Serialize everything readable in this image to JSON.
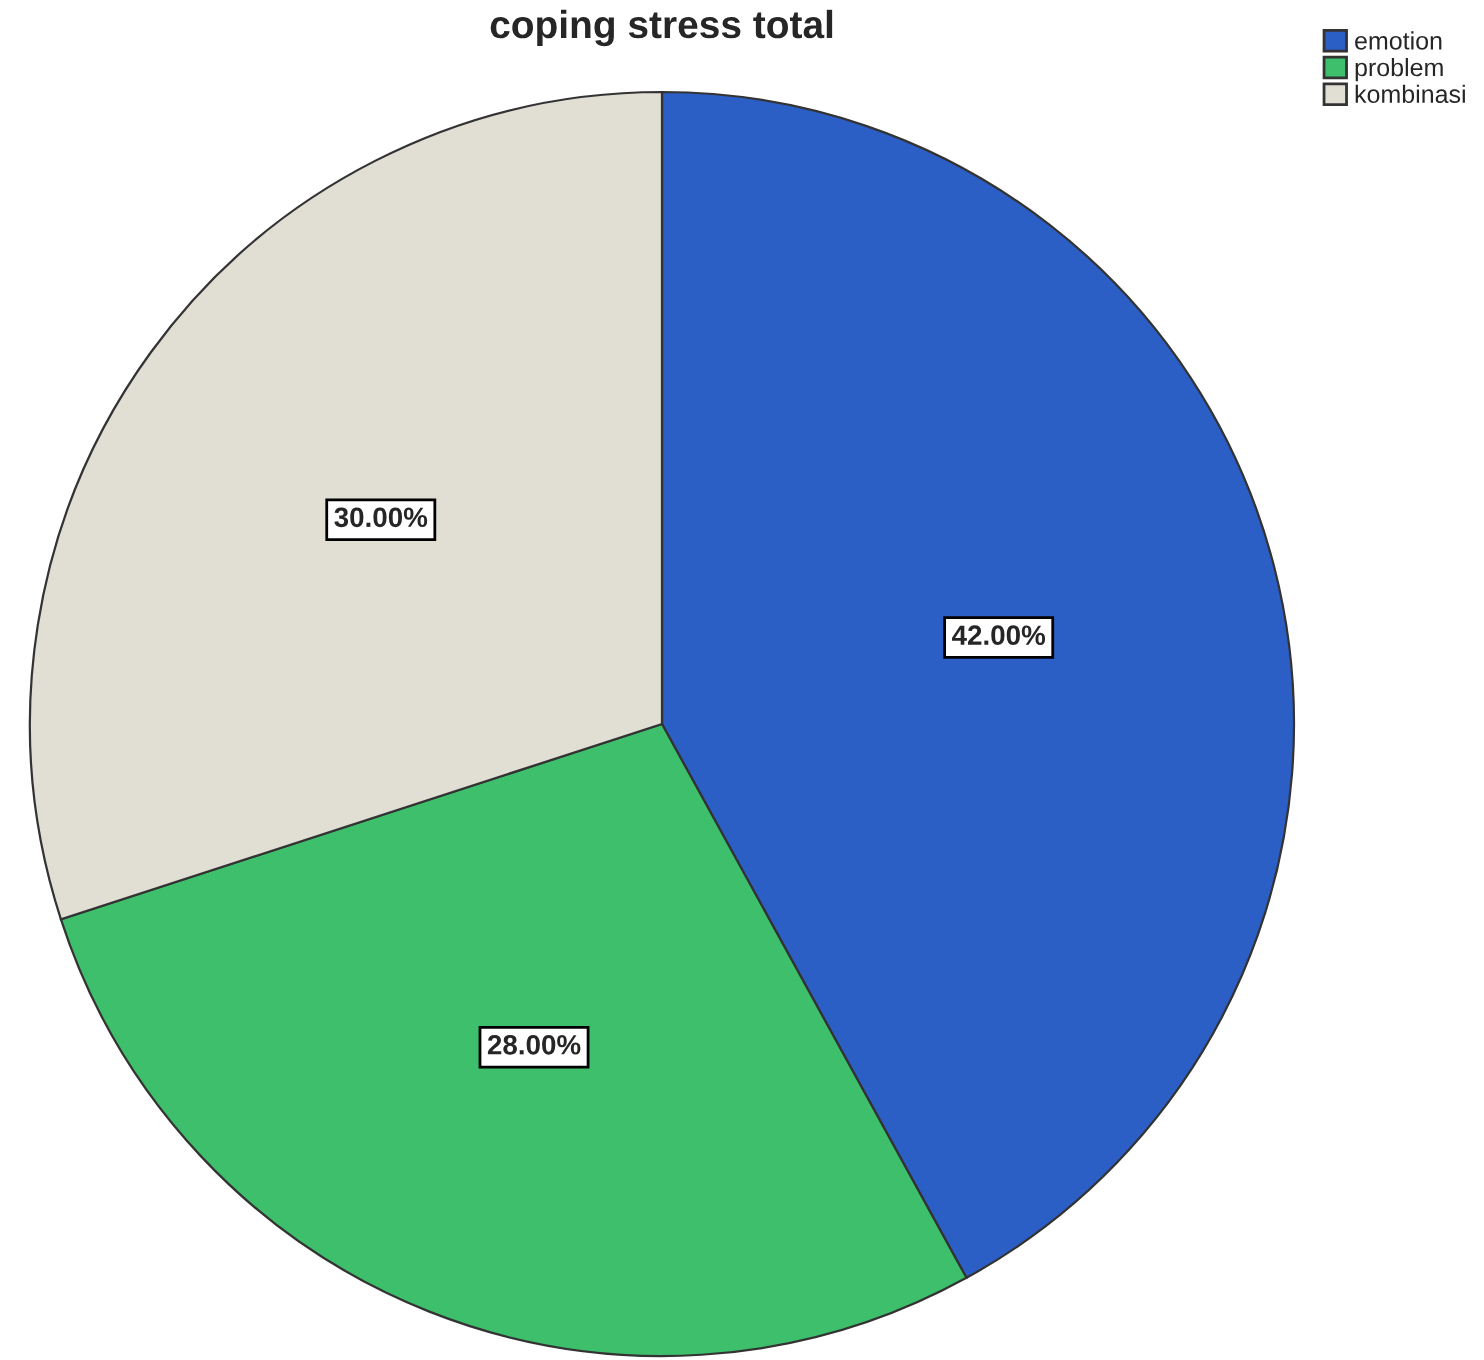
{
  "chart_data": {
    "type": "pie",
    "title": "coping stress total",
    "categories": [
      "emotion",
      "problem",
      "kombinasi"
    ],
    "values": [
      42,
      28,
      30
    ],
    "colors": [
      "#2c5fc6",
      "#3dbf6b",
      "#e1ded4"
    ],
    "value_labels": [
      "42.00%",
      "28.00%",
      "30.00%"
    ],
    "legend": "top right"
  }
}
